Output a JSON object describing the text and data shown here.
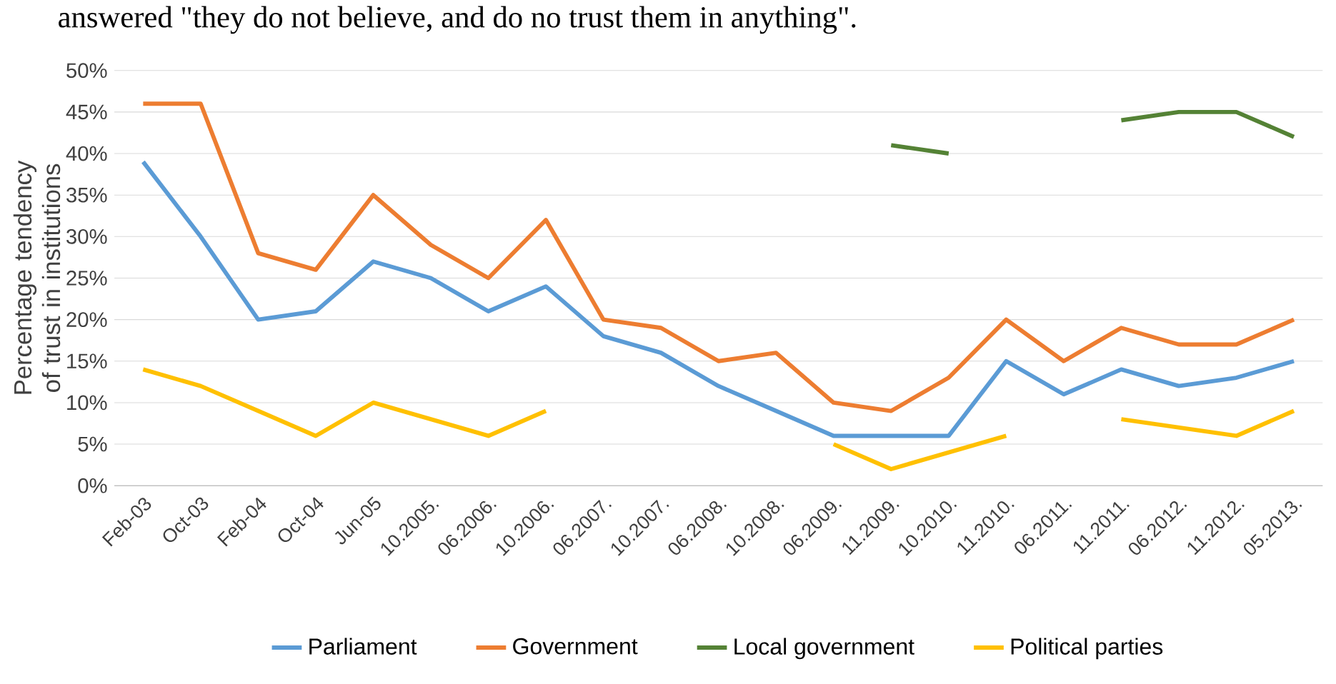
{
  "chart_data": {
    "type": "line",
    "annotations": [
      "answered \"they do not believe, and do no trust them in anything\"."
    ],
    "ylabel": "Percentage tendency of trust in institutions",
    "categories": [
      "Feb-03",
      "Oct-03",
      "Feb-04",
      "Oct-04",
      "Jun-05",
      "10.2005.",
      "06.2006.",
      "10.2006.",
      "06.2007.",
      "10.2007.",
      "06.2008.",
      "10.2008.",
      "06.2009.",
      "11.2009.",
      "10.2010.",
      "11.2010.",
      "06.2011.",
      "11.2011.",
      "06.2012.",
      "11.2012.",
      "05.2013."
    ],
    "series": [
      {
        "name": "Parliament",
        "color": "#5b9bd5",
        "values": [
          39,
          30,
          20,
          21,
          27,
          25,
          21,
          24,
          18,
          16,
          12,
          9,
          6,
          6,
          6,
          15,
          11,
          14,
          12,
          13,
          15
        ]
      },
      {
        "name": "Government",
        "color": "#ed7d31",
        "values": [
          46,
          46,
          28,
          26,
          35,
          29,
          25,
          32,
          20,
          19,
          15,
          16,
          10,
          9,
          13,
          20,
          15,
          19,
          17,
          17,
          20
        ]
      },
      {
        "name": "Local government",
        "color": "#548235",
        "values": [
          null,
          null,
          null,
          null,
          null,
          null,
          null,
          null,
          null,
          null,
          null,
          null,
          null,
          41,
          40,
          null,
          null,
          44,
          45,
          45,
          42
        ]
      },
      {
        "name": "Political parties",
        "color": "#ffc000",
        "values": [
          14,
          12,
          9,
          6,
          10,
          8,
          6,
          9,
          null,
          null,
          null,
          null,
          5,
          2,
          4,
          6,
          null,
          8,
          7,
          6,
          9
        ]
      }
    ],
    "ylim": [
      0,
      50
    ],
    "yticks": [
      {
        "value": 0,
        "label": "0%"
      },
      {
        "value": 5,
        "label": "5%"
      },
      {
        "value": 10,
        "label": "10%"
      },
      {
        "value": 15,
        "label": "15%"
      },
      {
        "value": 20,
        "label": "20%"
      },
      {
        "value": 25,
        "label": "25%"
      },
      {
        "value": 30,
        "label": "30%"
      },
      {
        "value": 35,
        "label": "35%"
      },
      {
        "value": 40,
        "label": "40%"
      },
      {
        "value": 45,
        "label": "45%"
      },
      {
        "value": 50,
        "label": "50%"
      }
    ],
    "grid": "y",
    "legend": "bottom",
    "marker": "none",
    "line_style": "solid"
  }
}
